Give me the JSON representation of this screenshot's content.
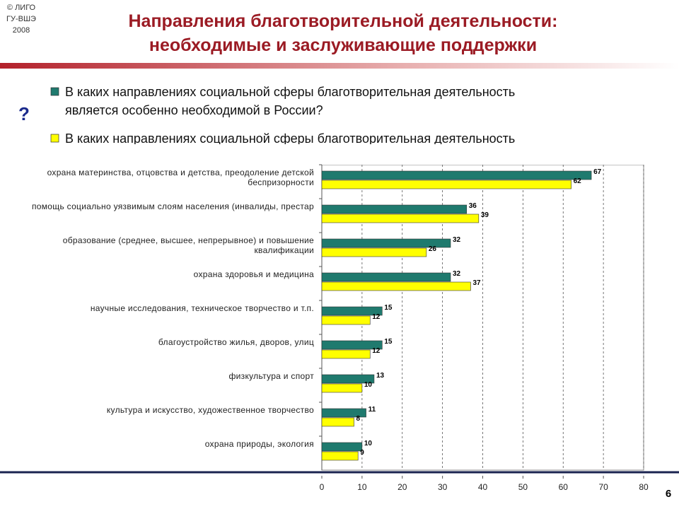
{
  "logo": [
    "© ЛИГО",
    "ГУ-ВШЭ",
    "2008"
  ],
  "title": [
    "Направления благотворительной деятельности:",
    "необходимые и заслуживающие поддержки"
  ],
  "question_mark": "?",
  "page_number": "6",
  "chart_data": {
    "type": "hbar",
    "categories": [
      "охрана материнства, отцовства и детства, преодоление детской беспризорности",
      "помощь социально уязвимым слоям населения (инвалиды, престар",
      "образование (среднее, высшее, непрерывное) и повышение квалификации",
      "охрана здоровья и медицина",
      "научные исследования, техническое творчество и т.п.",
      "благоустройство жилья, дворов, улиц",
      "физкультура и спорт",
      "культура и искусство, художественное творчество",
      "охрана природы, экология"
    ],
    "series": [
      {
        "name": "В каких направлениях социальной сферы благотворительная деятельность является особенно необходимой в России?",
        "color": "#1f7a6e",
        "values": [
          67,
          36,
          32,
          32,
          15,
          15,
          13,
          11,
          10
        ]
      },
      {
        "name": "В каких направлениях социальной сферы благотворительная деятельность",
        "color": "#ffff00",
        "values": [
          62,
          39,
          26,
          37,
          12,
          12,
          10,
          8,
          9
        ]
      }
    ],
    "xlim": [
      0,
      80
    ],
    "xticks": [
      0,
      10,
      20,
      30,
      40,
      50,
      60,
      70,
      80
    ],
    "grid": true
  }
}
